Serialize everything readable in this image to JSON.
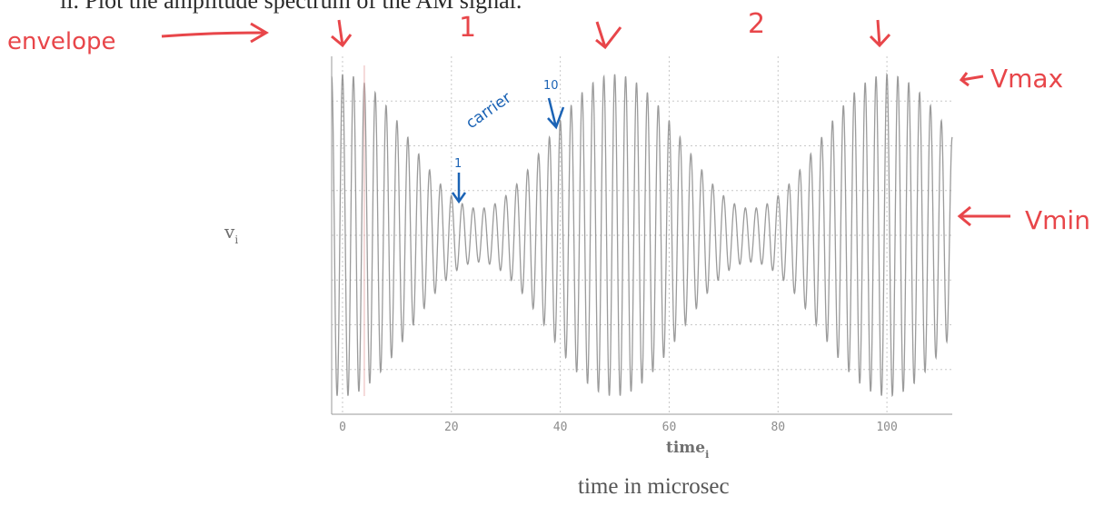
{
  "page": {
    "top_text": "ii. Plot the amplitude spectrum of the AM signal.",
    "caption": "time in microsec"
  },
  "chart_data": {
    "type": "line",
    "title": "",
    "xlabel": "time",
    "xlabel_subscript": "i",
    "ylabel": "v",
    "ylabel_subscript": "i",
    "x_ticks": [
      "0",
      "20",
      "40",
      "60",
      "80",
      "100"
    ],
    "xlim": [
      -2,
      112
    ],
    "ylim": [
      -1.0,
      1.0
    ],
    "grid": true,
    "series": [
      {
        "carrier_frequency_mhz": 0.5,
        "envelope_period_us": 50,
        "envelope_peak_times_us": [
          0,
          50,
          100
        ],
        "envelope_max": 0.9,
        "envelope_min": 0.15
      }
    ]
  },
  "annotations": {
    "envelope": "envelope",
    "label_1": "1",
    "label_2": "2",
    "carrier": "carrier",
    "carrier_1": "1",
    "carrier_10": "10",
    "vmax": "Vmax",
    "vmin": "Vmin"
  },
  "colors": {
    "annotation_red": "#e8464a",
    "annotation_blue": "#1b63b5",
    "signal": "#8a8a8a",
    "grid": "#c8c8c8"
  }
}
